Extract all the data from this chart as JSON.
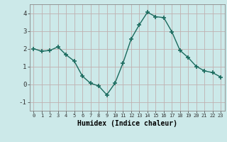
{
  "x": [
    0,
    1,
    2,
    3,
    4,
    5,
    6,
    7,
    8,
    9,
    10,
    11,
    12,
    13,
    14,
    15,
    16,
    17,
    18,
    19,
    20,
    21,
    22,
    23
  ],
  "y": [
    2.0,
    1.85,
    1.9,
    2.1,
    1.65,
    1.3,
    0.45,
    0.05,
    -0.1,
    -0.6,
    0.05,
    1.2,
    2.55,
    3.35,
    4.05,
    3.8,
    3.75,
    2.95,
    1.9,
    1.5,
    1.0,
    0.75,
    0.65,
    0.4
  ],
  "bg_color": "#cce9e9",
  "grid_color": "#c0b0b0",
  "line_color": "#1a6b5e",
  "marker_color": "#1a6b5e",
  "xlabel": "Humidex (Indice chaleur)",
  "ylim": [
    -1.5,
    4.5
  ],
  "xlim": [
    -0.5,
    23.5
  ],
  "yticks": [
    -1,
    0,
    1,
    2,
    3,
    4
  ],
  "xticks": [
    0,
    1,
    2,
    3,
    4,
    5,
    6,
    7,
    8,
    9,
    10,
    11,
    12,
    13,
    14,
    15,
    16,
    17,
    18,
    19,
    20,
    21,
    22,
    23
  ]
}
